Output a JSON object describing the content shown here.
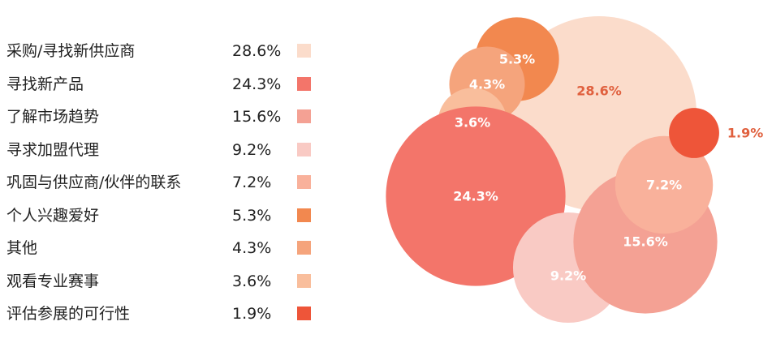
{
  "chart_data": {
    "type": "bubble",
    "title": "",
    "categories": [
      "采购/寻找新供应商",
      "寻找新产品",
      "了解市场趋势",
      "寻求加盟代理",
      "巩固与供应商/伙伴的联系",
      "个人兴趣爱好",
      "其他",
      "观看专业赛事",
      "评估参展的可行性"
    ],
    "values": [
      28.6,
      24.3,
      15.6,
      9.2,
      7.2,
      5.3,
      4.3,
      3.6,
      1.9
    ],
    "value_labels": [
      "28.6%",
      "24.3%",
      "15.6%",
      "9.2%",
      "7.2%",
      "5.3%",
      "4.3%",
      "3.6%",
      "1.9%"
    ],
    "colors": [
      "#FBDCCB",
      "#F3756A",
      "#F4A194",
      "#F9CAC4",
      "#F9B19B",
      "#F2884F",
      "#F5A47C",
      "#F9BE9C",
      "#EE5539"
    ],
    "unit": "%",
    "legend_position": "left"
  }
}
